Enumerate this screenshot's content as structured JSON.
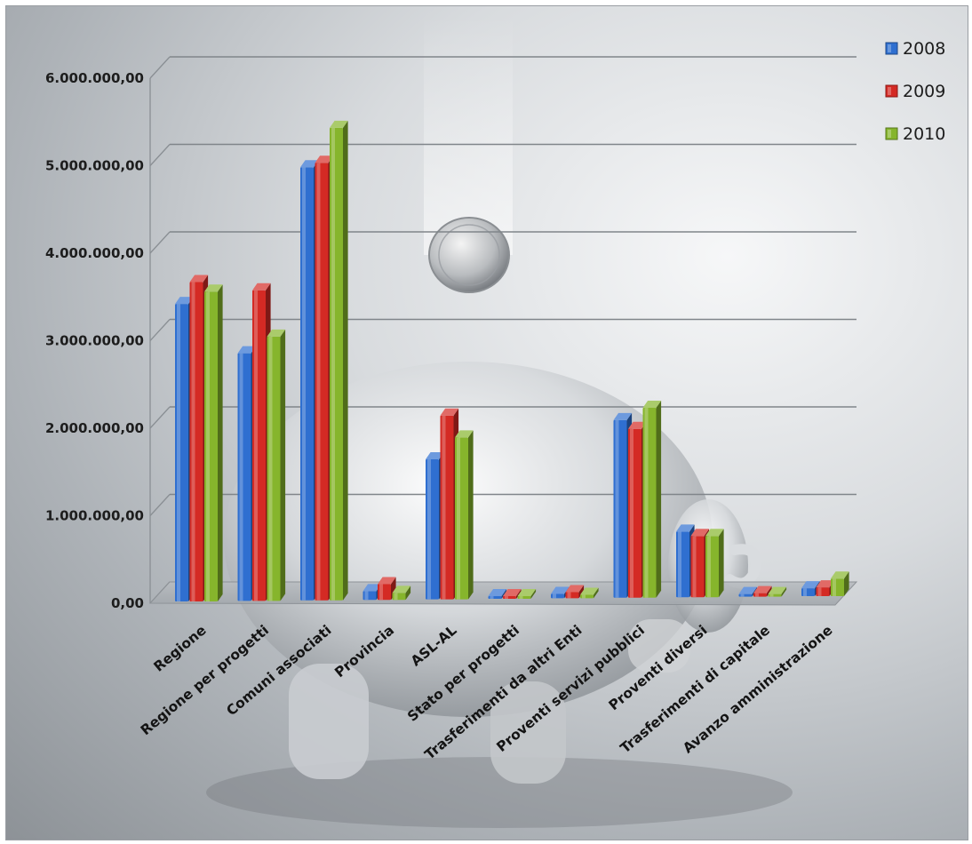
{
  "chart_data": {
    "type": "bar",
    "title": "",
    "xlabel": "",
    "ylabel": "",
    "categories": [
      "Regione",
      "Regione per progetti",
      "Comuni associati",
      "Provincia",
      "ASL-AL",
      "Stato per progetti",
      "Trasferimenti da altri Enti",
      "Proventi servizi pubblici",
      "Proventi diversi",
      "Trasferimenti di capitale",
      "Avanzo amministrazione"
    ],
    "series": [
      {
        "name": "2008",
        "color": "#2f6fd0",
        "values": [
          3400000,
          2830000,
          4950000,
          100000,
          1600000,
          0,
          50000,
          2030000,
          750000,
          30000,
          90000
        ]
      },
      {
        "name": "2009",
        "color": "#d42a24",
        "values": [
          3650000,
          3550000,
          5000000,
          180000,
          2100000,
          0,
          70000,
          1930000,
          700000,
          40000,
          100000
        ]
      },
      {
        "name": "2010",
        "color": "#86b52c",
        "values": [
          3540000,
          3020000,
          5400000,
          80000,
          1850000,
          0,
          40000,
          2170000,
          700000,
          30000,
          200000
        ]
      }
    ],
    "ylim": [
      0,
      6000000
    ],
    "y_ticks": [
      "0,00",
      "1.000.000,00",
      "2.000.000,00",
      "3.000.000,00",
      "4.000.000,00",
      "5.000.000,00",
      "6.000.000,00"
    ],
    "grid": true,
    "legend": "top-right",
    "style": "3d clustered column over background photo of piggy bank and falling coin"
  }
}
